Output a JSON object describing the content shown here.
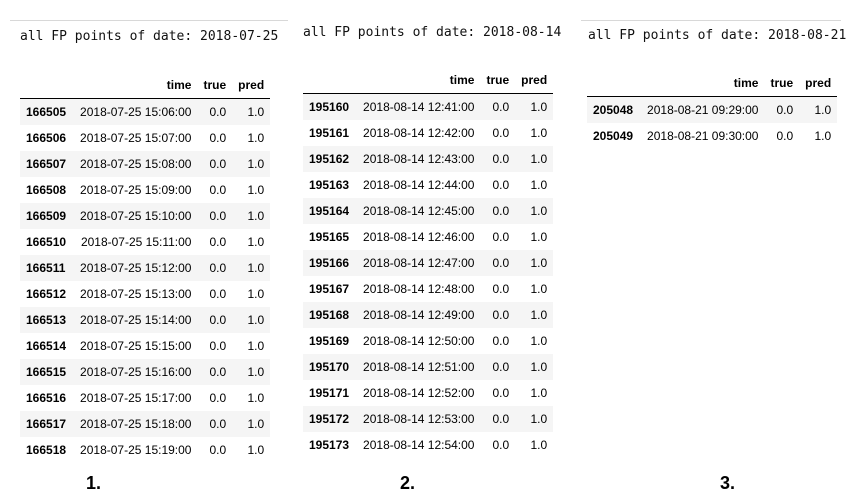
{
  "columns": [
    "",
    "time",
    "true",
    "pred"
  ],
  "panels": [
    {
      "heading": "all FP points of date: 2018-07-25",
      "label": "1.",
      "rows": [
        [
          "166505",
          "2018-07-25 15:06:00",
          "0.0",
          "1.0"
        ],
        [
          "166506",
          "2018-07-25 15:07:00",
          "0.0",
          "1.0"
        ],
        [
          "166507",
          "2018-07-25 15:08:00",
          "0.0",
          "1.0"
        ],
        [
          "166508",
          "2018-07-25 15:09:00",
          "0.0",
          "1.0"
        ],
        [
          "166509",
          "2018-07-25 15:10:00",
          "0.0",
          "1.0"
        ],
        [
          "166510",
          "2018-07-25 15:11:00",
          "0.0",
          "1.0"
        ],
        [
          "166511",
          "2018-07-25 15:12:00",
          "0.0",
          "1.0"
        ],
        [
          "166512",
          "2018-07-25 15:13:00",
          "0.0",
          "1.0"
        ],
        [
          "166513",
          "2018-07-25 15:14:00",
          "0.0",
          "1.0"
        ],
        [
          "166514",
          "2018-07-25 15:15:00",
          "0.0",
          "1.0"
        ],
        [
          "166515",
          "2018-07-25 15:16:00",
          "0.0",
          "1.0"
        ],
        [
          "166516",
          "2018-07-25 15:17:00",
          "0.0",
          "1.0"
        ],
        [
          "166517",
          "2018-07-25 15:18:00",
          "0.0",
          "1.0"
        ],
        [
          "166518",
          "2018-07-25 15:19:00",
          "0.0",
          "1.0"
        ]
      ]
    },
    {
      "heading": "all FP points of date: 2018-08-14",
      "label": "2.",
      "rows": [
        [
          "195160",
          "2018-08-14 12:41:00",
          "0.0",
          "1.0"
        ],
        [
          "195161",
          "2018-08-14 12:42:00",
          "0.0",
          "1.0"
        ],
        [
          "195162",
          "2018-08-14 12:43:00",
          "0.0",
          "1.0"
        ],
        [
          "195163",
          "2018-08-14 12:44:00",
          "0.0",
          "1.0"
        ],
        [
          "195164",
          "2018-08-14 12:45:00",
          "0.0",
          "1.0"
        ],
        [
          "195165",
          "2018-08-14 12:46:00",
          "0.0",
          "1.0"
        ],
        [
          "195166",
          "2018-08-14 12:47:00",
          "0.0",
          "1.0"
        ],
        [
          "195167",
          "2018-08-14 12:48:00",
          "0.0",
          "1.0"
        ],
        [
          "195168",
          "2018-08-14 12:49:00",
          "0.0",
          "1.0"
        ],
        [
          "195169",
          "2018-08-14 12:50:00",
          "0.0",
          "1.0"
        ],
        [
          "195170",
          "2018-08-14 12:51:00",
          "0.0",
          "1.0"
        ],
        [
          "195171",
          "2018-08-14 12:52:00",
          "0.0",
          "1.0"
        ],
        [
          "195172",
          "2018-08-14 12:53:00",
          "0.0",
          "1.0"
        ],
        [
          "195173",
          "2018-08-14 12:54:00",
          "0.0",
          "1.0"
        ]
      ]
    },
    {
      "heading": "all FP points of date: 2018-08-21",
      "label": "3.",
      "rows": [
        [
          "205048",
          "2018-08-21 09:29:00",
          "0.0",
          "1.0"
        ],
        [
          "205049",
          "2018-08-21 09:30:00",
          "0.0",
          "1.0"
        ]
      ]
    }
  ]
}
